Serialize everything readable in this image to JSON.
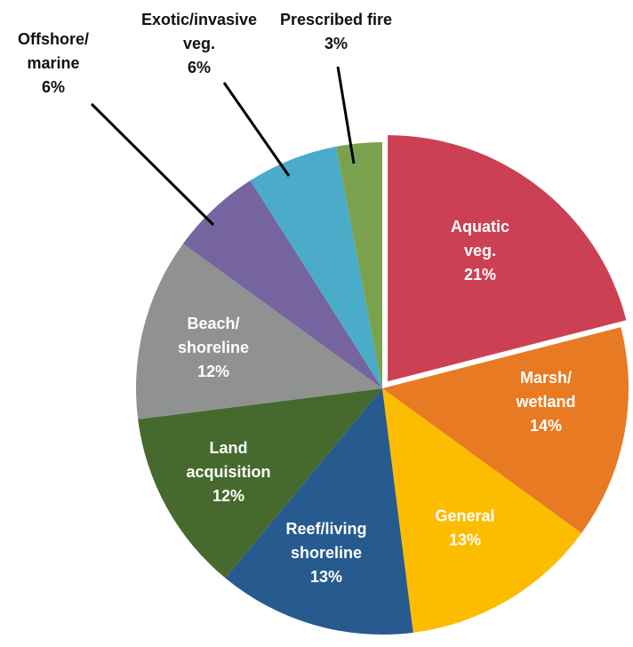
{
  "chart_data": {
    "type": "pie",
    "exploded_slice": "Aquatic veg.",
    "slices": [
      {
        "label_lines": [
          "Aquatic",
          "veg."
        ],
        "value_label": "21%",
        "value": 21,
        "color": "#cc4054",
        "label_position": "inside"
      },
      {
        "label_lines": [
          "Marsh/",
          "wetland"
        ],
        "value_label": "14%",
        "value": 14,
        "color": "#e77a22",
        "label_position": "inside"
      },
      {
        "label_lines": [
          "General"
        ],
        "value_label": "13%",
        "value": 13,
        "color": "#fcbc00",
        "label_position": "inside"
      },
      {
        "label_lines": [
          "Reef/living",
          "shoreline"
        ],
        "value_label": "13%",
        "value": 13,
        "color": "#275a8f",
        "label_position": "inside"
      },
      {
        "label_lines": [
          "Land",
          "acquisition"
        ],
        "value_label": "12%",
        "value": 12,
        "color": "#466a2e",
        "label_position": "inside"
      },
      {
        "label_lines": [
          "Beach/",
          "shoreline"
        ],
        "value_label": "12%",
        "value": 12,
        "color": "#8f9291",
        "label_position": "inside"
      },
      {
        "label_lines": [
          "Offshore/",
          "marine"
        ],
        "value_label": "6%",
        "value": 6,
        "color": "#75649f",
        "label_position": "outside"
      },
      {
        "label_lines": [
          "Exotic/invasive",
          "veg."
        ],
        "value_label": "6%",
        "value": 6,
        "color": "#4aacc8",
        "label_position": "outside"
      },
      {
        "label_lines": [
          "Prescribed fire"
        ],
        "value_label": "3%",
        "value": 3,
        "color": "#7aa24e",
        "label_position": "outside"
      }
    ]
  }
}
